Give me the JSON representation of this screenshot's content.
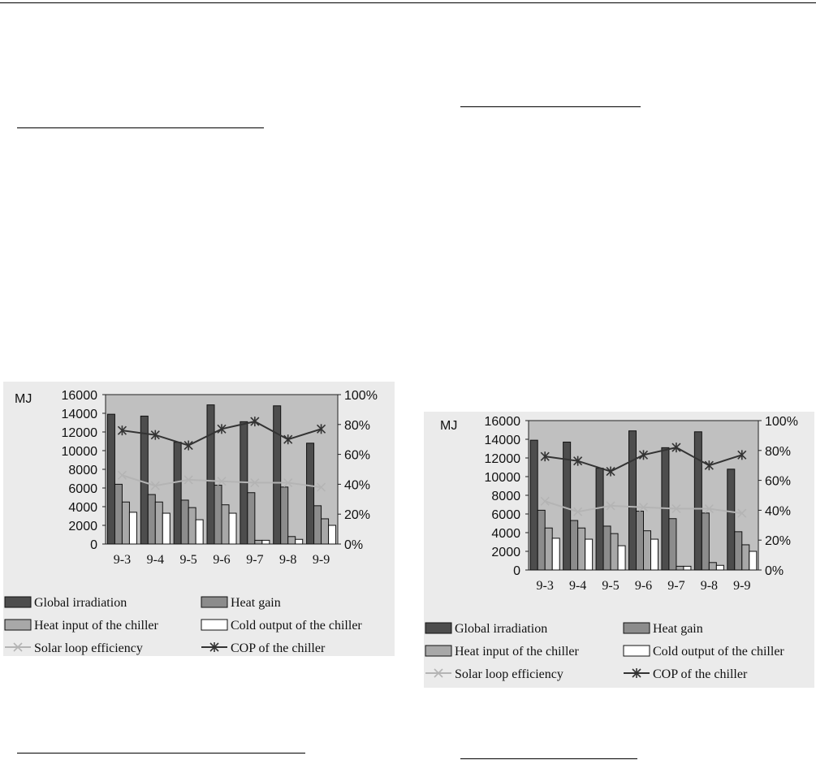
{
  "chart_data": [
    {
      "type": "bar",
      "categories": [
        "9-3",
        "9-4",
        "9-5",
        "9-6",
        "9-7",
        "9-8",
        "9-9"
      ],
      "ylabel": "MJ",
      "ylim": [
        0,
        16000
      ],
      "yticks": [
        "0",
        "2000",
        "4000",
        "6000",
        "8000",
        "10000",
        "12000",
        "14000",
        "16000"
      ],
      "y2lim": [
        0,
        100
      ],
      "y2ticks": [
        "0%",
        "20%",
        "40%",
        "60%",
        "80%",
        "100%"
      ],
      "grid": false,
      "legend_position": "bottom",
      "series": [
        {
          "name": "Global irradiation",
          "kind": "bar",
          "axis": "left",
          "color": "#4d4d4d",
          "values": [
            13900,
            13700,
            10900,
            14900,
            13100,
            14800,
            10800
          ]
        },
        {
          "name": "Heat gain",
          "kind": "bar",
          "axis": "left",
          "color": "#8c8c8c",
          "values": [
            6400,
            5300,
            4700,
            6300,
            5500,
            6100,
            4100
          ]
        },
        {
          "name": "Heat input of the chiller",
          "kind": "bar",
          "axis": "left",
          "color": "#a8a8a8",
          "values": [
            4500,
            4500,
            3900,
            4200,
            400,
            800,
            2700
          ]
        },
        {
          "name": "Cold output of the chiller",
          "kind": "bar",
          "axis": "left",
          "color": "#ffffff",
          "values": [
            3400,
            3300,
            2600,
            3300,
            400,
            500,
            2000
          ]
        },
        {
          "name": "Solar loop efficiency",
          "kind": "line",
          "axis": "right",
          "color": "#b4b4b4",
          "marker": "x",
          "values": [
            46,
            39,
            43,
            42,
            41,
            41,
            38
          ]
        },
        {
          "name": "COP of the chiller",
          "kind": "line",
          "axis": "right",
          "color": "#333333",
          "marker": "star",
          "values": [
            76,
            73,
            66,
            77,
            82,
            70,
            77
          ]
        }
      ]
    },
    {
      "type": "bar",
      "categories": [
        "9-3",
        "9-4",
        "9-5",
        "9-6",
        "9-7",
        "9-8",
        "9-9"
      ],
      "ylabel": "MJ",
      "ylim": [
        0,
        16000
      ],
      "yticks": [
        "0",
        "2000",
        "4000",
        "6000",
        "8000",
        "10000",
        "12000",
        "14000",
        "16000"
      ],
      "y2lim": [
        0,
        100
      ],
      "y2ticks": [
        "0%",
        "20%",
        "40%",
        "60%",
        "80%",
        "100%"
      ],
      "grid": false,
      "legend_position": "bottom",
      "series": [
        {
          "name": "Global irradiation",
          "kind": "bar",
          "axis": "left",
          "color": "#4d4d4d",
          "values": [
            13900,
            13700,
            10900,
            14900,
            13100,
            14800,
            10800
          ]
        },
        {
          "name": "Heat gain",
          "kind": "bar",
          "axis": "left",
          "color": "#8c8c8c",
          "values": [
            6400,
            5300,
            4700,
            6300,
            5500,
            6100,
            4100
          ]
        },
        {
          "name": "Heat input of the chiller",
          "kind": "bar",
          "axis": "left",
          "color": "#a8a8a8",
          "values": [
            4500,
            4500,
            3900,
            4200,
            400,
            800,
            2700
          ]
        },
        {
          "name": "Cold output of the chiller",
          "kind": "bar",
          "axis": "left",
          "color": "#ffffff",
          "values": [
            3400,
            3300,
            2600,
            3300,
            400,
            500,
            2000
          ]
        },
        {
          "name": "Solar loop efficiency",
          "kind": "line",
          "axis": "right",
          "color": "#b4b4b4",
          "marker": "x",
          "values": [
            46,
            39,
            43,
            42,
            41,
            41,
            38
          ]
        },
        {
          "name": "COP of the chiller",
          "kind": "line",
          "axis": "right",
          "color": "#333333",
          "marker": "star",
          "values": [
            76,
            73,
            66,
            77,
            82,
            70,
            77
          ]
        }
      ]
    }
  ]
}
